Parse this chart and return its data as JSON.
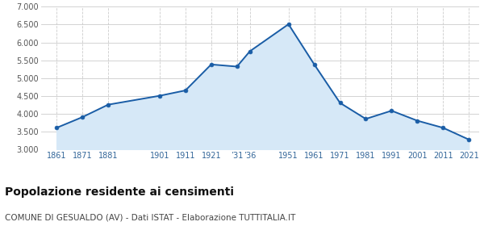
{
  "years": [
    1861,
    1871,
    1881,
    1901,
    1911,
    1921,
    1931,
    1936,
    1951,
    1961,
    1971,
    1981,
    1991,
    2001,
    2011,
    2021
  ],
  "population": [
    3600,
    3900,
    4250,
    4500,
    4650,
    5380,
    5320,
    5750,
    6510,
    5380,
    4300,
    3850,
    4080,
    3800,
    3600,
    3270
  ],
  "line_color": "#1a5da6",
  "fill_color": "#d6e8f7",
  "marker_color": "#1a5da6",
  "bg_color": "#ffffff",
  "grid_color": "#cccccc",
  "ylim": [
    3000,
    7000
  ],
  "yticks": [
    3000,
    3500,
    4000,
    4500,
    5000,
    5500,
    6000,
    6500,
    7000
  ],
  "x_tick_positions": [
    1861,
    1871,
    1881,
    1901,
    1911,
    1921,
    1931,
    1936,
    1951,
    1961,
    1971,
    1981,
    1991,
    2001,
    2011,
    2021
  ],
  "x_tick_labels": [
    "1861",
    "1871",
    "1881",
    "1901",
    "1911",
    "1921",
    "’31",
    "’36",
    "1951",
    "1961",
    "1971",
    "1981",
    "1991",
    "2001",
    "2011",
    "2021"
  ],
  "title": "Popolazione residente ai censimenti",
  "subtitle": "COMUNE DI GESUALDO (AV) - Dati ISTAT - Elaborazione TUTTITALIA.IT",
  "title_fontsize": 10,
  "subtitle_fontsize": 7.5,
  "tick_fontsize": 7,
  "x_tick_color": "#336699",
  "y_tick_color": "#555555"
}
